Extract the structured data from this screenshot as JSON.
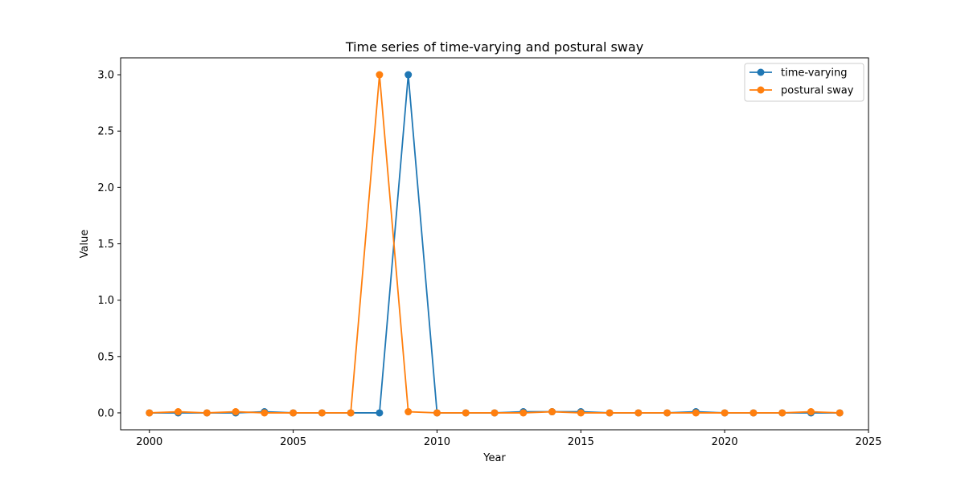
{
  "chart_data": {
    "type": "line",
    "title": "Time series of time-varying and postural sway",
    "xlabel": "Year",
    "ylabel": "Value",
    "xlim": [
      1999,
      2025
    ],
    "ylim": [
      -0.15,
      3.15
    ],
    "x_ticks": [
      2000,
      2005,
      2010,
      2015,
      2020,
      2025
    ],
    "y_ticks": [
      0.0,
      0.5,
      1.0,
      1.5,
      2.0,
      2.5,
      3.0
    ],
    "y_tick_labels": [
      "0.0",
      "0.5",
      "1.0",
      "1.5",
      "2.0",
      "2.5",
      "3.0"
    ],
    "grid": false,
    "legend_position": "top-right",
    "x": [
      2000,
      2001,
      2002,
      2003,
      2004,
      2005,
      2006,
      2007,
      2008,
      2009,
      2010,
      2011,
      2012,
      2013,
      2014,
      2015,
      2016,
      2017,
      2018,
      2019,
      2020,
      2021,
      2022,
      2023,
      2024
    ],
    "series": [
      {
        "name": "time-varying",
        "color": "#1f77b4",
        "values": [
          0.0,
          0.0,
          0.0,
          0.0,
          0.01,
          0.0,
          0.0,
          0.0,
          0.0,
          3.0,
          0.0,
          0.0,
          0.0,
          0.01,
          0.01,
          0.01,
          0.0,
          0.0,
          0.0,
          0.01,
          0.0,
          0.0,
          0.0,
          0.0,
          0.0
        ]
      },
      {
        "name": "postural sway",
        "color": "#ff7f0e",
        "values": [
          0.0,
          0.01,
          0.0,
          0.01,
          0.0,
          0.0,
          0.0,
          0.0,
          3.0,
          0.01,
          0.0,
          0.0,
          0.0,
          0.0,
          0.01,
          0.0,
          0.0,
          0.0,
          0.0,
          0.0,
          0.0,
          0.0,
          0.0,
          0.01,
          0.0
        ]
      }
    ]
  }
}
